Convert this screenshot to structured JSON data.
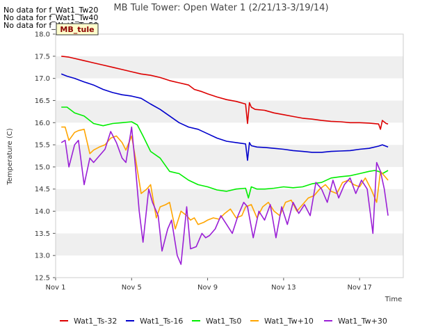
{
  "no_data_messages": [
    "No data for f_Wat1_Tw20",
    "No data for f_Wat1_Tw40",
    "No data for f_Wat1_Tw50"
  ],
  "tooltip_label": "MB_tule",
  "colors": {
    "band": "#efefef",
    "Wat1_Ts-32": "#dd0000",
    "Wat1_Ts-16": "#0000cc",
    "Wat1_Ts0": "#00ee00",
    "Wat1_Tw+10": "#ffa500",
    "Wat1_Tw+30": "#9a1fd6"
  },
  "chart_data": {
    "type": "line",
    "title": "MB Tule Tower: Open Water 1 (2/21/13-3/19/14)",
    "xlabel": "Time",
    "ylabel": "Temperature (C)",
    "xlim": [
      1,
      19.3
    ],
    "ylim": [
      12.5,
      18.0
    ],
    "x_ticks": [
      1,
      5,
      9,
      13,
      17
    ],
    "x_tick_labels": [
      "Nov 1",
      "Nov 5",
      "Nov 9",
      "Nov 13",
      "Nov 17"
    ],
    "y_ticks": [
      12.5,
      13.0,
      13.5,
      14.0,
      14.5,
      15.0,
      15.5,
      16.0,
      16.5,
      17.0,
      17.5,
      18.0
    ],
    "y_tick_labels": [
      "12.5",
      "13.0",
      "13.5",
      "14.0",
      "14.5",
      "15.0",
      "15.5",
      "16.0",
      "16.5",
      "17.0",
      "17.5",
      "18.0"
    ],
    "legend_position": "bottom",
    "grid": "alternating horizontal bands",
    "series": [
      {
        "name": "Wat1_Ts-32",
        "x": [
          1.3,
          1.7,
          2.0,
          2.5,
          3.0,
          3.5,
          4.0,
          4.5,
          5.0,
          5.5,
          6.0,
          6.5,
          7.0,
          7.5,
          8.0,
          8.3,
          8.7,
          9.0,
          9.5,
          10.0,
          10.5,
          11.0,
          11.1,
          11.2,
          11.3,
          11.5,
          12.0,
          12.5,
          13.0,
          13.5,
          14.0,
          14.5,
          15.0,
          15.5,
          16.0,
          16.5,
          17.0,
          17.5,
          18.0,
          18.1,
          18.2,
          18.4,
          18.5
        ],
        "y": [
          17.5,
          17.48,
          17.45,
          17.4,
          17.35,
          17.3,
          17.25,
          17.2,
          17.15,
          17.1,
          17.07,
          17.02,
          16.95,
          16.9,
          16.85,
          16.75,
          16.7,
          16.65,
          16.58,
          16.52,
          16.48,
          16.42,
          15.98,
          16.45,
          16.35,
          16.3,
          16.28,
          16.22,
          16.18,
          16.14,
          16.1,
          16.08,
          16.05,
          16.03,
          16.02,
          16.0,
          16.0,
          15.99,
          15.97,
          15.85,
          16.05,
          15.98,
          15.97
        ]
      },
      {
        "name": "Wat1_Ts-16",
        "x": [
          1.3,
          1.6,
          2.0,
          2.5,
          3.0,
          3.5,
          4.0,
          4.5,
          5.0,
          5.5,
          6.0,
          6.5,
          7.0,
          7.5,
          8.0,
          8.5,
          9.0,
          9.5,
          10.0,
          10.5,
          11.0,
          11.1,
          11.2,
          11.3,
          11.6,
          12.0,
          12.5,
          13.0,
          13.5,
          14.0,
          14.5,
          15.0,
          15.5,
          16.0,
          16.5,
          17.0,
          17.5,
          18.0,
          18.2,
          18.5
        ],
        "y": [
          17.1,
          17.05,
          17.0,
          16.92,
          16.85,
          16.75,
          16.68,
          16.63,
          16.6,
          16.55,
          16.42,
          16.3,
          16.15,
          16.0,
          15.9,
          15.85,
          15.75,
          15.65,
          15.58,
          15.55,
          15.52,
          15.15,
          15.55,
          15.48,
          15.45,
          15.44,
          15.42,
          15.4,
          15.37,
          15.35,
          15.33,
          15.33,
          15.35,
          15.36,
          15.37,
          15.4,
          15.42,
          15.47,
          15.5,
          15.45
        ]
      },
      {
        "name": "Wat1_Ts0",
        "x": [
          1.3,
          1.6,
          2.0,
          2.5,
          3.0,
          3.5,
          4.0,
          4.5,
          5.0,
          5.3,
          5.6,
          6.0,
          6.5,
          7.0,
          7.5,
          8.0,
          8.5,
          9.0,
          9.5,
          10.0,
          10.5,
          11.0,
          11.15,
          11.3,
          11.6,
          12.0,
          12.5,
          13.0,
          13.5,
          14.0,
          14.5,
          15.0,
          15.5,
          16.0,
          16.5,
          17.0,
          17.5,
          17.8,
          18.0,
          18.2,
          18.5
        ],
        "y": [
          16.35,
          16.35,
          16.22,
          16.15,
          15.98,
          15.93,
          15.98,
          16.0,
          16.02,
          15.95,
          15.7,
          15.35,
          15.2,
          14.9,
          14.85,
          14.7,
          14.6,
          14.55,
          14.48,
          14.45,
          14.5,
          14.52,
          14.3,
          14.55,
          14.5,
          14.5,
          14.52,
          14.55,
          14.53,
          14.55,
          14.62,
          14.65,
          14.75,
          14.78,
          14.8,
          14.85,
          14.9,
          14.92,
          14.9,
          14.85,
          14.92
        ]
      },
      {
        "name": "Wat1_Tw+10",
        "x": [
          1.3,
          1.5,
          1.7,
          2.0,
          2.2,
          2.5,
          2.8,
          3.0,
          3.3,
          3.6,
          3.9,
          4.2,
          4.5,
          4.7,
          5.0,
          5.2,
          5.5,
          5.8,
          6.0,
          6.3,
          6.5,
          6.8,
          7.0,
          7.3,
          7.6,
          7.9,
          8.1,
          8.3,
          8.5,
          8.8,
          9.0,
          9.3,
          9.6,
          9.9,
          10.2,
          10.5,
          10.8,
          11.0,
          11.3,
          11.6,
          11.9,
          12.2,
          12.5,
          12.8,
          13.1,
          13.4,
          13.7,
          14.0,
          14.3,
          14.6,
          14.9,
          15.2,
          15.5,
          15.8,
          16.1,
          16.4,
          16.7,
          17.0,
          17.3,
          17.6,
          17.9,
          18.1,
          18.3,
          18.5
        ],
        "y": [
          15.9,
          15.9,
          15.6,
          15.78,
          15.82,
          15.85,
          15.3,
          15.38,
          15.45,
          15.5,
          15.65,
          15.7,
          15.55,
          15.38,
          15.7,
          15.2,
          14.4,
          14.5,
          14.6,
          13.85,
          14.1,
          14.15,
          14.2,
          13.6,
          14.0,
          13.9,
          13.8,
          13.85,
          13.7,
          13.75,
          13.8,
          13.85,
          13.82,
          13.95,
          14.05,
          13.85,
          13.9,
          14.1,
          14.15,
          13.85,
          14.1,
          14.2,
          14.0,
          13.9,
          14.2,
          14.25,
          14.0,
          14.15,
          14.3,
          14.35,
          14.5,
          14.6,
          14.45,
          14.4,
          14.65,
          14.7,
          14.6,
          14.55,
          14.75,
          14.5,
          14.2,
          14.9,
          14.8,
          14.7
        ]
      },
      {
        "name": "Wat1_Tw+30",
        "x": [
          1.3,
          1.5,
          1.7,
          2.0,
          2.2,
          2.5,
          2.8,
          3.0,
          3.3,
          3.6,
          3.9,
          4.2,
          4.5,
          4.7,
          5.0,
          5.2,
          5.4,
          5.6,
          5.9,
          6.1,
          6.4,
          6.6,
          6.9,
          7.1,
          7.4,
          7.6,
          7.9,
          8.1,
          8.4,
          8.7,
          8.9,
          9.1,
          9.4,
          9.7,
          10.0,
          10.3,
          10.6,
          10.9,
          11.1,
          11.4,
          11.7,
          12.0,
          12.3,
          12.6,
          12.9,
          13.2,
          13.5,
          13.8,
          14.1,
          14.4,
          14.7,
          15.0,
          15.3,
          15.6,
          15.9,
          16.2,
          16.5,
          16.8,
          17.1,
          17.4,
          17.7,
          17.9,
          18.1,
          18.3,
          18.5
        ],
        "y": [
          15.55,
          15.6,
          15.0,
          15.5,
          15.6,
          14.6,
          15.2,
          15.1,
          15.25,
          15.4,
          15.8,
          15.55,
          15.2,
          15.1,
          15.9,
          15.0,
          14.0,
          13.3,
          14.5,
          14.2,
          13.9,
          13.1,
          13.6,
          13.8,
          13.0,
          12.8,
          14.1,
          13.15,
          13.2,
          13.5,
          13.4,
          13.45,
          13.6,
          13.9,
          13.7,
          13.5,
          13.9,
          14.2,
          14.1,
          13.4,
          14.0,
          13.8,
          14.15,
          13.4,
          14.1,
          13.7,
          14.2,
          13.95,
          14.15,
          13.9,
          14.65,
          14.5,
          14.2,
          14.7,
          14.3,
          14.6,
          14.75,
          14.4,
          14.7,
          14.5,
          13.5,
          15.1,
          14.9,
          14.5,
          13.9
        ]
      }
    ]
  }
}
